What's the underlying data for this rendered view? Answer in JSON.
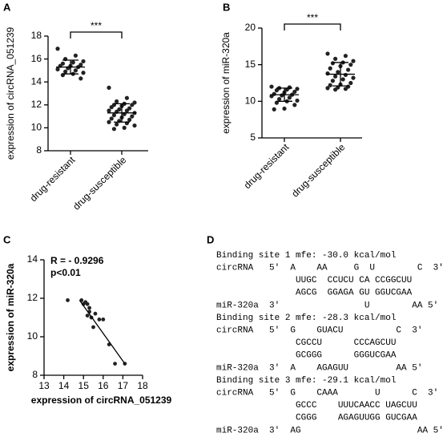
{
  "chart_data": [
    {
      "type": "dotplot",
      "label": "A",
      "ylabel": "expression of circRNA_051239",
      "categories": [
        "drug-resistant",
        "drug-susceptible"
      ],
      "values": [
        [
          16.9,
          16.3,
          16.0,
          15.8,
          15.7,
          15.6,
          15.5,
          15.4,
          15.4,
          15.3,
          15.2,
          15.1,
          15.0,
          14.9,
          14.8,
          14.7,
          14.6,
          14.3
        ],
        [
          13.5,
          12.6,
          12.3,
          12.2,
          12.1,
          12.0,
          12.0,
          11.9,
          11.8,
          11.7,
          11.6,
          11.5,
          11.5,
          11.4,
          11.3,
          11.2,
          11.1,
          11.0,
          10.9,
          10.8,
          10.7,
          10.6,
          10.5,
          10.4,
          10.3,
          10.2,
          10.0,
          9.9
        ]
      ],
      "means": [
        15.3,
        11.3
      ],
      "sds": [
        0.6,
        0.8
      ],
      "significance": "***",
      "ylim": [
        8,
        18
      ],
      "yticks": [
        8,
        10,
        12,
        14,
        16,
        18
      ]
    },
    {
      "type": "dotplot",
      "label": "B",
      "ylabel": "expression of miR-320a",
      "categories": [
        "drug-resistant",
        "drug-susceptible"
      ],
      "values": [
        [
          12.0,
          11.9,
          11.8,
          11.7,
          11.6,
          11.5,
          11.3,
          11.2,
          11.0,
          10.9,
          10.8,
          10.7,
          10.5,
          10.3,
          10.1,
          10.0,
          9.8,
          9.5,
          9.0,
          8.9
        ],
        [
          16.5,
          16.2,
          15.8,
          15.5,
          15.3,
          15.2,
          15.0,
          14.8,
          14.5,
          14.3,
          14.0,
          13.8,
          13.6,
          13.4,
          13.2,
          13.0,
          12.8,
          12.5,
          12.3,
          12.2,
          12.0,
          11.9,
          11.8,
          11.7,
          11.6
        ]
      ],
      "means": [
        10.9,
        13.7
      ],
      "sds": [
        0.9,
        1.6
      ],
      "significance": "***",
      "ylim": [
        5,
        20
      ],
      "yticks": [
        5,
        10,
        15,
        20
      ]
    },
    {
      "type": "scatter",
      "label": "C",
      "xlabel": "expression of circRNA_051239",
      "ylabel": "expression of miR-320a",
      "annotations": [
        "R = - 0.9296",
        "p<0.01"
      ],
      "x": [
        14.2,
        14.9,
        15.0,
        15.1,
        15.2,
        15.3,
        15.2,
        15.4,
        15.5,
        15.8,
        16.0,
        16.3,
        16.6,
        17.1,
        15.3,
        15.6
      ],
      "y": [
        11.9,
        11.9,
        11.7,
        11.8,
        11.7,
        11.3,
        11.1,
        11.0,
        10.5,
        10.9,
        10.9,
        9.6,
        8.6,
        8.6,
        11.5,
        11.2
      ],
      "fit_line": {
        "x": [
          14.8,
          17.1
        ],
        "y": [
          11.9,
          8.6
        ]
      },
      "xlim": [
        13,
        18
      ],
      "xticks": [
        13,
        14,
        15,
        16,
        17,
        18
      ],
      "ylim": [
        8,
        14
      ],
      "yticks": [
        8,
        10,
        12,
        14
      ]
    }
  ],
  "panel_d": {
    "label": "D",
    "lines": [
      "Binding site 1 mfe: -30.0 kcal/mol",
      "circRNA   5'  A    AA     G  U        C  3'",
      "               UUGC  CCUCU CA CCGGCUU",
      "               AGCG  GGAGA GU GGUCGAA",
      "miR-320a  3'                U        AA 5'",
      "Binding site 2 mfe: -28.3 kcal/mol",
      "circRNA   5'  G    GUACU          C  3'",
      "               CGCCU      CCCAGCUU",
      "               GCGGG      GGGUCGAA",
      "miR-320a  3'  A    AGAGUU         AA 5'",
      "Binding site 3 mfe: -29.1 kcal/mol",
      "circRNA   5'  G    CAAA       U      C  3'",
      "               GCCC    UUUCAACC UAGCUU",
      "               CGGG    AGAGUUGG GUCGAA",
      "miR-320a  3'  AG                      AA 5'"
    ]
  }
}
